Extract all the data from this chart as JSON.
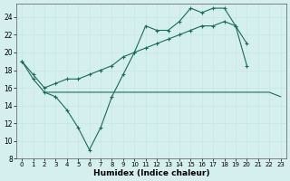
{
  "xlabel": "Humidex (Indice chaleur)",
  "background_color": "#d4efee",
  "grid_color": "#b8ddd9",
  "line_color": "#1a6b5a",
  "xlim": [
    -0.5,
    23.5
  ],
  "ylim": [
    8,
    25.5
  ],
  "yticks": [
    8,
    10,
    12,
    14,
    16,
    18,
    20,
    22,
    24
  ],
  "xticks": [
    0,
    1,
    2,
    3,
    4,
    5,
    6,
    7,
    8,
    9,
    10,
    11,
    12,
    13,
    14,
    15,
    16,
    17,
    18,
    19,
    20,
    21,
    22,
    23
  ],
  "series1_y": [
    19,
    17,
    15.5,
    15,
    13.5,
    11.5,
    9,
    11.5,
    15,
    17.5,
    20,
    23,
    22.5,
    22.5,
    23.5,
    25,
    24.5,
    25,
    25,
    23,
    18.5,
    null,
    null,
    null
  ],
  "series2_y": [
    null,
    null,
    15.5,
    15.5,
    15.5,
    15.5,
    15.5,
    15.5,
    15.5,
    15.5,
    15.5,
    15.5,
    15.5,
    15.5,
    15.5,
    15.5,
    15.5,
    15.5,
    15.5,
    15.5,
    15.5,
    15.5,
    15.5,
    15
  ],
  "series3_y": [
    19,
    17.5,
    16,
    16.5,
    17,
    17,
    17.5,
    18,
    18.5,
    19.5,
    20,
    20.5,
    21,
    21.5,
    22,
    22.5,
    23,
    23,
    23.5,
    23,
    21,
    null,
    null,
    null
  ]
}
